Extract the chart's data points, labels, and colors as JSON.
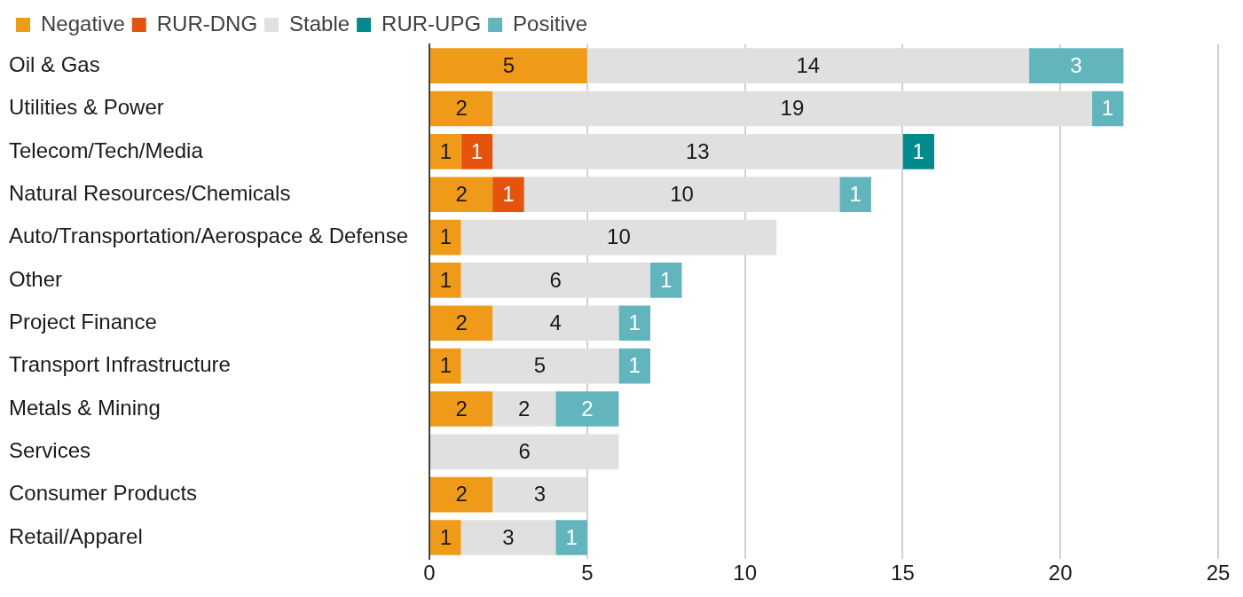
{
  "chart_data": {
    "type": "bar",
    "orientation": "horizontal",
    "stacked": true,
    "categories": [
      "Oil & Gas",
      "Utilities & Power",
      "Telecom/Tech/Media",
      "Natural Resources/Chemicals",
      "Auto/Transportation/Aerospace & Defense",
      "Other",
      "Project Finance",
      "Transport Infrastructure",
      "Metals & Mining",
      "Services",
      "Consumer Products",
      "Retail/Apparel"
    ],
    "series": [
      {
        "name": "Negative",
        "color": "#f09a1a",
        "values": [
          5,
          2,
          1,
          2,
          1,
          1,
          2,
          1,
          2,
          null,
          2,
          1
        ]
      },
      {
        "name": "RUR-DNG",
        "color": "#e4540c",
        "values": [
          null,
          null,
          1,
          1,
          null,
          null,
          null,
          null,
          null,
          null,
          null,
          null
        ]
      },
      {
        "name": "Stable",
        "color": "#e0e0e0",
        "values": [
          14,
          19,
          13,
          10,
          10,
          6,
          4,
          5,
          2,
          6,
          3,
          3
        ]
      },
      {
        "name": "RUR-UPG",
        "color": "#008a8c",
        "values": [
          null,
          null,
          1,
          null,
          null,
          null,
          null,
          null,
          null,
          null,
          null,
          null
        ]
      },
      {
        "name": "Positive",
        "color": "#62b5bc",
        "values": [
          3,
          1,
          null,
          1,
          null,
          1,
          1,
          1,
          2,
          null,
          null,
          1
        ]
      }
    ],
    "xlim": [
      0,
      25
    ],
    "xticks": [
      0,
      5,
      10,
      15,
      20,
      25
    ],
    "grid": "x",
    "legend": "top left",
    "data_labels": true
  }
}
